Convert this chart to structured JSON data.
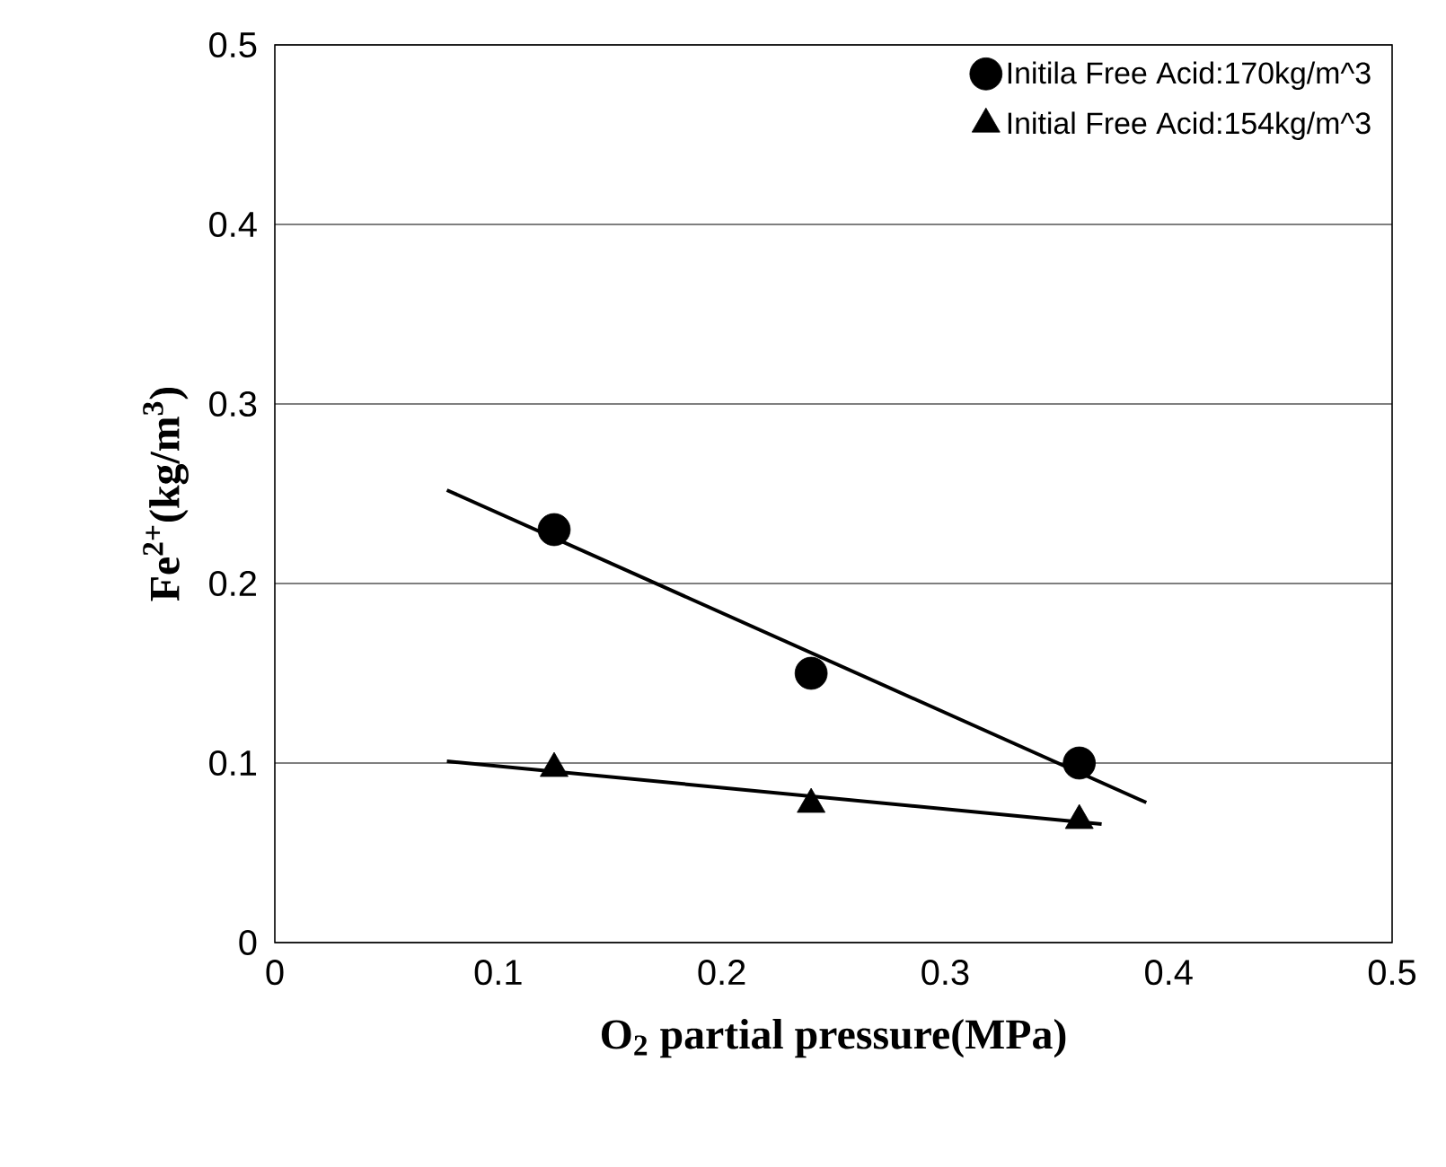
{
  "chart_data": {
    "type": "scatter",
    "xlabel": "O$_{2}$ partial pressure(MPa)",
    "ylabel": "Fe$^{2+}$(kg/m$^{3}$)",
    "xlim": [
      0,
      0.5
    ],
    "ylim": [
      0,
      0.5
    ],
    "xticks": [
      0,
      0.1,
      0.2,
      0.3,
      0.4,
      0.5
    ],
    "yticks": [
      0,
      0.1,
      0.2,
      0.3,
      0.4,
      0.5
    ],
    "grid": "y",
    "legend": "top right",
    "series": [
      {
        "name": "Initila Free Acid:170kg/m^3",
        "color": "#000000",
        "marker": "circle",
        "x": [
          0.125,
          0.24,
          0.36
        ],
        "values": [
          0.23,
          0.15,
          0.1
        ]
      },
      {
        "name": "Initial Free Acid:154kg/m^3",
        "color": "#000000",
        "marker": "triangle",
        "x": [
          0.125,
          0.24,
          0.36
        ],
        "values": [
          0.097,
          0.077,
          0.068
        ]
      },
      {
        "type": "line",
        "color": "#000000",
        "marker": "none",
        "x": [
          0.077,
          0.39
        ],
        "values": [
          0.252,
          0.078
        ]
      },
      {
        "type": "line",
        "color": "#000000",
        "marker": "none",
        "x": [
          0.077,
          0.37
        ],
        "values": [
          0.101,
          0.066
        ]
      }
    ]
  }
}
